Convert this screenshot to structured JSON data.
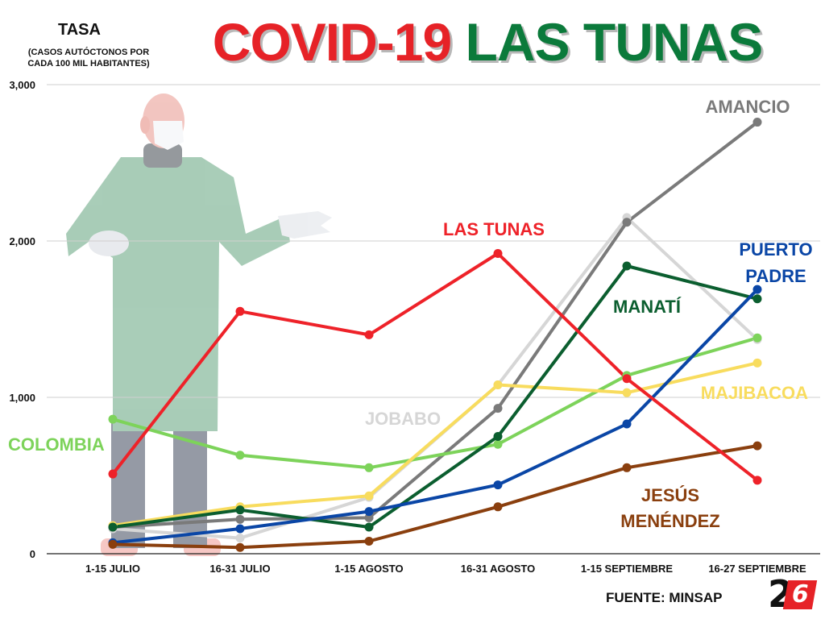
{
  "header": {
    "title_part1": "COVID-19",
    "title_part2": "LAS TUNAS",
    "ylabel": "TASA",
    "ysub": "(CASOS AUTÓCTONOS POR CADA 100 MIL HABITANTES)"
  },
  "footer": {
    "source": "FUENTE: MINSAP",
    "logo_2": "2",
    "logo_6": "6"
  },
  "colors": {
    "title_red": "#e62227",
    "title_green": "#0b7a3b"
  },
  "chart_data": {
    "type": "line",
    "title": "COVID-19 LAS TUNAS",
    "ylabel": "TASA (CASOS AUTÓCTONOS POR CADA 100 MIL HABITANTES)",
    "xlabel": "",
    "ylim": [
      0,
      3000
    ],
    "yticks": [
      0,
      1000,
      2000,
      3000
    ],
    "ytick_labels": [
      "0",
      "1,000",
      "2,000",
      "3,000"
    ],
    "grid": true,
    "categories": [
      "1-15 JULIO",
      "16-31 JULIO",
      "1-15 AGOSTO",
      "16-31 AGOSTO",
      "1-15 SEPTIEMBRE",
      "16-27 SEPTIEMBRE"
    ],
    "series": [
      {
        "name": "JOBABO",
        "label": [
          "JOBABO"
        ],
        "color": "#d6d6d6",
        "values": [
          160,
          100,
          360,
          1080,
          2150,
          1370
        ]
      },
      {
        "name": "AMANCIO",
        "label": [
          "AMANCIO"
        ],
        "color": "#7a7a7a",
        "values": [
          170,
          220,
          230,
          930,
          2120,
          2760
        ]
      },
      {
        "name": "COLOMBIA",
        "label": [
          "COLOMBIA"
        ],
        "color": "#7dd35a",
        "values": [
          860,
          630,
          550,
          700,
          1140,
          1380
        ]
      },
      {
        "name": "MAJIBACOA",
        "label": [
          "MAJIBACOA"
        ],
        "color": "#f8dc5e",
        "values": [
          180,
          300,
          370,
          1080,
          1030,
          1220
        ]
      },
      {
        "name": "MANATÍ",
        "label": [
          "MANATÍ"
        ],
        "color": "#0b5e2f",
        "values": [
          170,
          280,
          170,
          750,
          1840,
          1630
        ]
      },
      {
        "name": "PUERTO PADRE",
        "label": [
          "PUERTO",
          "PADRE"
        ],
        "color": "#0a46a6",
        "values": [
          70,
          160,
          270,
          440,
          830,
          1690
        ]
      },
      {
        "name": "JESÚS MENÉNDEZ",
        "label": [
          "JESÚS",
          "MENÉNDEZ"
        ],
        "color": "#8a3f0e",
        "values": [
          60,
          40,
          80,
          300,
          550,
          690
        ]
      },
      {
        "name": "LAS TUNAS",
        "label": [
          "LAS TUNAS"
        ],
        "color": "#ee2229",
        "values": [
          510,
          1550,
          1400,
          1920,
          1120,
          470
        ]
      }
    ]
  }
}
